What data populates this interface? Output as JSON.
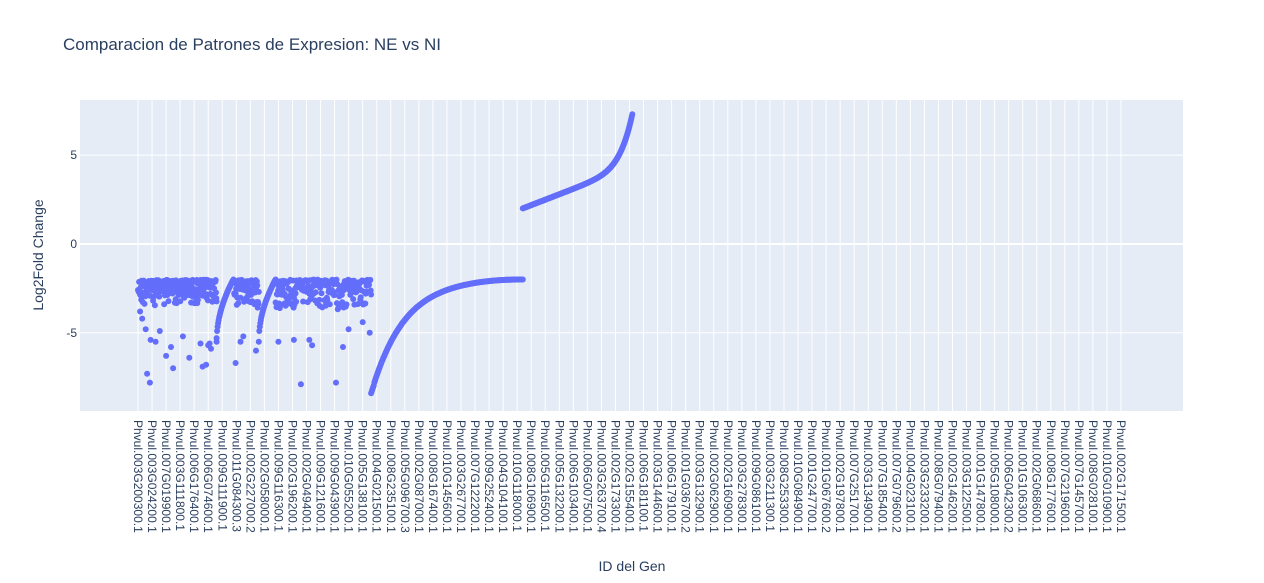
{
  "chart_data": {
    "type": "scatter",
    "title": "Comparacion de Patrones de Expresion: NE vs NI",
    "xlabel": "ID del Gen",
    "ylabel": "Log2Fold Change",
    "ylim": [
      -9.4,
      8.1
    ],
    "y_ticks": [
      5,
      0,
      -5
    ],
    "grid": true,
    "marker_color": "#636efa",
    "plot_bg": "#e5ecf6",
    "x_tick_labels": [
      "Phvul.003G200300.1",
      "Phvul.003G024200.1",
      "Phvul.007G019900.1",
      "Phvul.003G111800.1",
      "Phvul.006G176400.1",
      "Phvul.006G074600.1",
      "Phvul.009G111900.1",
      "Phvul.011G084300.3",
      "Phvul.002G227000.2",
      "Phvul.002G058000.1",
      "Phvul.009G116300.1",
      "Phvul.002G196200.1",
      "Phvul.002G049400.1",
      "Phvul.009G121600.1",
      "Phvul.009G043900.1",
      "Phvul.010G055200.1",
      "Phvul.005G138100.1",
      "Phvul.004G021500.1",
      "Phvul.008G235100.1",
      "Phvul.005G096700.3",
      "Phvul.002G087000.1",
      "Phvul.008G167400.1",
      "Phvul.010G145600.1",
      "Phvul.003G267700.1",
      "Phvul.007G122200.1",
      "Phvul.009G252400.1",
      "Phvul.004G104100.1",
      "Phvul.010G118000.1",
      "Phvul.008G106900.1",
      "Phvul.005G116500.1",
      "Phvul.005G132200.1",
      "Phvul.006G103400.1",
      "Phvul.006G007500.1",
      "Phvul.003G263700.4",
      "Phvul.002G173300.1",
      "Phvul.002G155400.1",
      "Phvul.006G181100.1",
      "Phvul.003G144600.1",
      "Phvul.006G179100.1",
      "Phvul.001G036700.2",
      "Phvul.003G132900.1",
      "Phvul.002G062900.1",
      "Phvul.002G160900.1",
      "Phvul.003G278300.1",
      "Phvul.009G086100.1",
      "Phvul.003G211300.1",
      "Phvul.008G253300.1",
      "Phvul.010G084900.1",
      "Phvul.001G247700.1",
      "Phvul.001G067600.2",
      "Phvul.002G197800.1",
      "Phvul.007G251700.1",
      "Phvul.003G134900.1",
      "Phvul.007G185400.1",
      "Phvul.007G079600.2",
      "Phvul.004G023100.1",
      "Phvul.003G233200.1",
      "Phvul.008G079400.1",
      "Phvul.002G146200.1",
      "Phvul.003G122500.1",
      "Phvul.001G147800.1",
      "Phvul.005G108000.1",
      "Phvul.006G042300.2",
      "Phvul.001G106300.1",
      "Phvul.002G068600.1",
      "Phvul.008G177600.1",
      "Phvul.007G219600.1",
      "Phvul.007G145700.1",
      "Phvul.008G028100.1",
      "Phvul.010G010900.1",
      "Phvul.002G171500.1"
    ],
    "series": [
      {
        "segments": [
          {
            "kind": "scatter",
            "x_from": 0,
            "x_to": 3.55,
            "n": 140,
            "y_base": -2.0,
            "spread": 1.4,
            "outliers": [
              [
                0.15,
                -3.8
              ],
              [
                0.3,
                -4.2
              ],
              [
                0.55,
                -4.8
              ],
              [
                0.65,
                -7.3
              ],
              [
                0.85,
                -7.8
              ],
              [
                0.9,
                -5.4
              ],
              [
                1.25,
                -5.5
              ],
              [
                1.55,
                -4.9
              ],
              [
                2.0,
                -6.3
              ],
              [
                2.35,
                -5.8
              ],
              [
                2.5,
                -7.0
              ],
              [
                3.2,
                -5.2
              ]
            ]
          },
          {
            "kind": "scatter",
            "x_from": 3.55,
            "x_to": 5.6,
            "n": 90,
            "y_base": -2.0,
            "spread": 1.3,
            "outliers": [
              [
                3.65,
                -6.4
              ],
              [
                4.45,
                -5.6
              ],
              [
                4.6,
                -6.9
              ],
              [
                4.85,
                -6.8
              ],
              [
                5.0,
                -5.7
              ],
              [
                5.1,
                -5.6
              ],
              [
                5.2,
                -5.9
              ],
              [
                5.6,
                -5.3
              ]
            ]
          },
          {
            "kind": "curve",
            "x_from": 5.6,
            "x_to": 6.8,
            "n": 35,
            "y_start": -5.5,
            "y_end": -2.0
          },
          {
            "kind": "scatter",
            "x_from": 6.8,
            "x_to": 8.6,
            "n": 70,
            "y_base": -2.0,
            "spread": 1.5,
            "outliers": [
              [
                6.95,
                -6.7
              ],
              [
                7.3,
                -5.5
              ],
              [
                7.5,
                -5.2
              ],
              [
                8.4,
                -6.0
              ]
            ]
          },
          {
            "kind": "curve",
            "x_from": 8.6,
            "x_to": 9.8,
            "n": 35,
            "y_start": -5.5,
            "y_end": -2.0
          },
          {
            "kind": "scatter",
            "x_from": 9.8,
            "x_to": 16.6,
            "n": 230,
            "y_base": -2.0,
            "spread": 1.6,
            "outliers": [
              [
                10.0,
                -5.5
              ],
              [
                11.1,
                -5.4
              ],
              [
                11.6,
                -7.9
              ],
              [
                12.2,
                -5.4
              ],
              [
                12.4,
                -5.7
              ],
              [
                14.1,
                -7.8
              ],
              [
                14.6,
                -5.8
              ],
              [
                15.0,
                -4.8
              ],
              [
                16.0,
                -4.4
              ],
              [
                16.5,
                -5.0
              ]
            ]
          },
          {
            "kind": "descending-tail",
            "x_from": 16.6,
            "x_to": 27.4,
            "n": 230,
            "y_start": -8.4,
            "y_end": -2.0
          },
          {
            "kind": "ascending-tail",
            "x_from": 27.4,
            "x_to": 35.2,
            "n": 220,
            "y_start": 2.0,
            "y_end": 7.3
          }
        ]
      }
    ]
  }
}
